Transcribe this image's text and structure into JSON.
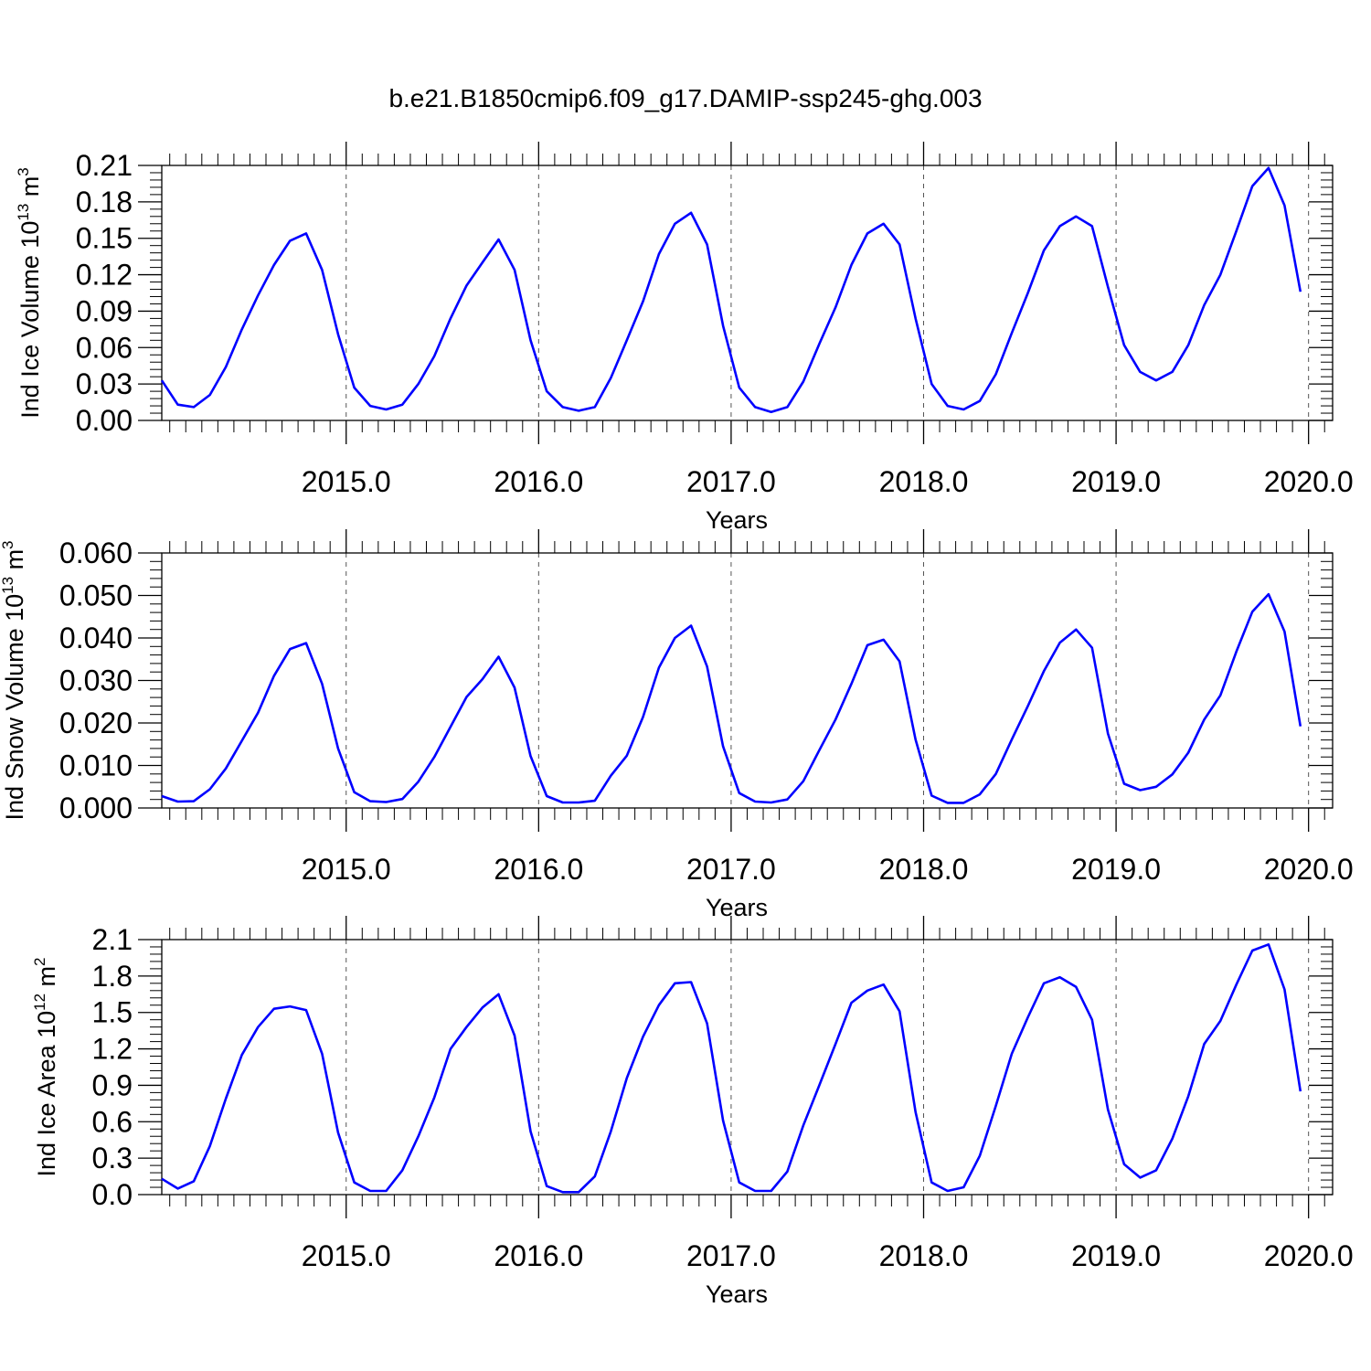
{
  "page": {
    "title": "b.e21.B1850cmip6.f09_g17.DAMIP-ssp245-ghg.003"
  },
  "style": {
    "line_color": "#0000ff",
    "grid_color": "#555555",
    "axis_color": "#000000"
  },
  "chart_data": [
    {
      "type": "line",
      "ylabel": "Ind Ice Volume 10",
      "ylabel_exp": "13",
      "ylabel_unit": " m",
      "ylabel_unit_exp": "3",
      "xlabel": "Years",
      "xlim": [
        2014.042,
        2020.125
      ],
      "ylim": [
        0,
        0.21
      ],
      "yticks": [
        0.0,
        0.03,
        0.06,
        0.09,
        0.12,
        0.15,
        0.18,
        0.21
      ],
      "ytick_labels": [
        "0.00",
        "0.03",
        "0.06",
        "0.09",
        "0.12",
        "0.15",
        "0.18",
        "0.21"
      ],
      "xticks": [
        2015,
        2016,
        2017,
        2018,
        2019,
        2020
      ],
      "xtick_labels": [
        "2015.0",
        "2016.0",
        "2017.0",
        "2018.0",
        "2019.0",
        "2020.0"
      ],
      "grid": "vertical dashed at years",
      "series": [
        {
          "x": [
            2014.042,
            2014.125,
            2014.208,
            2014.292,
            2014.375,
            2014.458,
            2014.542,
            2014.625,
            2014.708,
            2014.792,
            2014.875,
            2014.958,
            2015.042,
            2015.125,
            2015.208,
            2015.292,
            2015.375,
            2015.458,
            2015.542,
            2015.625,
            2015.708,
            2015.792,
            2015.875,
            2015.958,
            2016.042,
            2016.125,
            2016.208,
            2016.292,
            2016.375,
            2016.458,
            2016.542,
            2016.625,
            2016.708,
            2016.792,
            2016.875,
            2016.958,
            2017.042,
            2017.125,
            2017.208,
            2017.292,
            2017.375,
            2017.458,
            2017.542,
            2017.625,
            2017.708,
            2017.792,
            2017.875,
            2017.958,
            2018.042,
            2018.125,
            2018.208,
            2018.292,
            2018.375,
            2018.458,
            2018.542,
            2018.625,
            2018.708,
            2018.792,
            2018.875,
            2018.958,
            2019.042,
            2019.125,
            2019.208,
            2019.292,
            2019.375,
            2019.458,
            2019.542,
            2019.625,
            2019.708,
            2019.792,
            2019.875,
            2019.958
          ],
          "y": [
            0.033,
            0.013,
            0.011,
            0.021,
            0.044,
            0.075,
            0.103,
            0.128,
            0.148,
            0.154,
            0.124,
            0.071,
            0.027,
            0.012,
            0.009,
            0.013,
            0.03,
            0.053,
            0.084,
            0.111,
            0.13,
            0.149,
            0.124,
            0.066,
            0.024,
            0.011,
            0.008,
            0.011,
            0.035,
            0.066,
            0.098,
            0.137,
            0.162,
            0.171,
            0.145,
            0.078,
            0.027,
            0.011,
            0.007,
            0.011,
            0.032,
            0.063,
            0.093,
            0.128,
            0.154,
            0.162,
            0.145,
            0.084,
            0.03,
            0.012,
            0.009,
            0.016,
            0.038,
            0.072,
            0.105,
            0.14,
            0.16,
            0.168,
            0.16,
            0.11,
            0.062,
            0.04,
            0.033,
            0.04,
            0.062,
            0.095,
            0.12,
            0.156,
            0.193,
            0.208,
            0.177,
            0.106
          ]
        }
      ]
    },
    {
      "type": "line",
      "ylabel": "Ind Snow Volume 10",
      "ylabel_exp": "13",
      "ylabel_unit": " m",
      "ylabel_unit_exp": "3",
      "xlabel": "Years",
      "xlim": [
        2014.042,
        2020.125
      ],
      "ylim": [
        0,
        0.06
      ],
      "yticks": [
        0.0,
        0.01,
        0.02,
        0.03,
        0.04,
        0.05,
        0.06
      ],
      "ytick_labels": [
        "0.000",
        "0.010",
        "0.020",
        "0.030",
        "0.040",
        "0.050",
        "0.060"
      ],
      "xticks": [
        2015,
        2016,
        2017,
        2018,
        2019,
        2020
      ],
      "xtick_labels": [
        "2015.0",
        "2016.0",
        "2017.0",
        "2018.0",
        "2019.0",
        "2020.0"
      ],
      "grid": "vertical dashed at years",
      "series": [
        {
          "x": [
            2014.042,
            2014.125,
            2014.208,
            2014.292,
            2014.375,
            2014.458,
            2014.542,
            2014.625,
            2014.708,
            2014.792,
            2014.875,
            2014.958,
            2015.042,
            2015.125,
            2015.208,
            2015.292,
            2015.375,
            2015.458,
            2015.542,
            2015.625,
            2015.708,
            2015.792,
            2015.875,
            2015.958,
            2016.042,
            2016.125,
            2016.208,
            2016.292,
            2016.375,
            2016.458,
            2016.542,
            2016.625,
            2016.708,
            2016.792,
            2016.875,
            2016.958,
            2017.042,
            2017.125,
            2017.208,
            2017.292,
            2017.375,
            2017.458,
            2017.542,
            2017.625,
            2017.708,
            2017.792,
            2017.875,
            2017.958,
            2018.042,
            2018.125,
            2018.208,
            2018.292,
            2018.375,
            2018.458,
            2018.542,
            2018.625,
            2018.708,
            2018.792,
            2018.875,
            2018.958,
            2019.042,
            2019.125,
            2019.208,
            2019.292,
            2019.375,
            2019.458,
            2019.542,
            2019.625,
            2019.708,
            2019.792,
            2019.875,
            2019.958
          ],
          "y": [
            0.0028,
            0.0015,
            0.0016,
            0.0044,
            0.0093,
            0.0158,
            0.0224,
            0.0311,
            0.0374,
            0.0388,
            0.0292,
            0.014,
            0.0037,
            0.0016,
            0.0014,
            0.0021,
            0.0062,
            0.012,
            0.0191,
            0.0261,
            0.0303,
            0.0356,
            0.0283,
            0.0122,
            0.0028,
            0.0013,
            0.0013,
            0.0017,
            0.0076,
            0.0123,
            0.0214,
            0.033,
            0.04,
            0.0429,
            0.0333,
            0.0145,
            0.0035,
            0.0015,
            0.0013,
            0.002,
            0.0063,
            0.0136,
            0.0208,
            0.0292,
            0.0383,
            0.0396,
            0.0345,
            0.0161,
            0.0029,
            0.0012,
            0.0012,
            0.0032,
            0.008,
            0.0161,
            0.024,
            0.0322,
            0.0389,
            0.042,
            0.0377,
            0.0175,
            0.0057,
            0.0042,
            0.005,
            0.0079,
            0.013,
            0.0208,
            0.0265,
            0.0368,
            0.0462,
            0.0503,
            0.0415,
            0.0192
          ]
        }
      ]
    },
    {
      "type": "line",
      "ylabel": "Ind Ice Area 10",
      "ylabel_exp": "12",
      "ylabel_unit": " m",
      "ylabel_unit_exp": "2",
      "xlabel": "Years",
      "xlim": [
        2014.042,
        2020.125
      ],
      "ylim": [
        0,
        2.1
      ],
      "yticks": [
        0.0,
        0.3,
        0.6,
        0.9,
        1.2,
        1.5,
        1.8,
        2.1
      ],
      "ytick_labels": [
        "0.0",
        "0.3",
        "0.6",
        "0.9",
        "1.2",
        "1.5",
        "1.8",
        "2.1"
      ],
      "xticks": [
        2015,
        2016,
        2017,
        2018,
        2019,
        2020
      ],
      "xtick_labels": [
        "2015.0",
        "2016.0",
        "2017.0",
        "2018.0",
        "2019.0",
        "2020.0"
      ],
      "grid": "vertical dashed at years",
      "series": [
        {
          "x": [
            2014.042,
            2014.125,
            2014.208,
            2014.292,
            2014.375,
            2014.458,
            2014.542,
            2014.625,
            2014.708,
            2014.792,
            2014.875,
            2014.958,
            2015.042,
            2015.125,
            2015.208,
            2015.292,
            2015.375,
            2015.458,
            2015.542,
            2015.625,
            2015.708,
            2015.792,
            2015.875,
            2015.958,
            2016.042,
            2016.125,
            2016.208,
            2016.292,
            2016.375,
            2016.458,
            2016.542,
            2016.625,
            2016.708,
            2016.792,
            2016.875,
            2016.958,
            2017.042,
            2017.125,
            2017.208,
            2017.292,
            2017.375,
            2017.458,
            2017.542,
            2017.625,
            2017.708,
            2017.792,
            2017.875,
            2017.958,
            2018.042,
            2018.125,
            2018.208,
            2018.292,
            2018.375,
            2018.458,
            2018.542,
            2018.625,
            2018.708,
            2018.792,
            2018.875,
            2018.958,
            2019.042,
            2019.125,
            2019.208,
            2019.292,
            2019.375,
            2019.458,
            2019.542,
            2019.625,
            2019.708,
            2019.792,
            2019.875,
            2019.958
          ],
          "y": [
            0.13,
            0.05,
            0.11,
            0.4,
            0.79,
            1.15,
            1.38,
            1.53,
            1.55,
            1.52,
            1.16,
            0.51,
            0.1,
            0.03,
            0.03,
            0.2,
            0.48,
            0.8,
            1.2,
            1.38,
            1.54,
            1.65,
            1.31,
            0.52,
            0.07,
            0.02,
            0.02,
            0.15,
            0.52,
            0.96,
            1.3,
            1.56,
            1.74,
            1.75,
            1.41,
            0.61,
            0.1,
            0.03,
            0.03,
            0.19,
            0.57,
            0.9,
            1.24,
            1.58,
            1.68,
            1.73,
            1.51,
            0.68,
            0.1,
            0.03,
            0.06,
            0.32,
            0.73,
            1.16,
            1.46,
            1.74,
            1.79,
            1.71,
            1.44,
            0.7,
            0.25,
            0.14,
            0.2,
            0.46,
            0.81,
            1.24,
            1.43,
            1.73,
            2.01,
            2.06,
            1.69,
            0.85
          ]
        }
      ]
    }
  ]
}
